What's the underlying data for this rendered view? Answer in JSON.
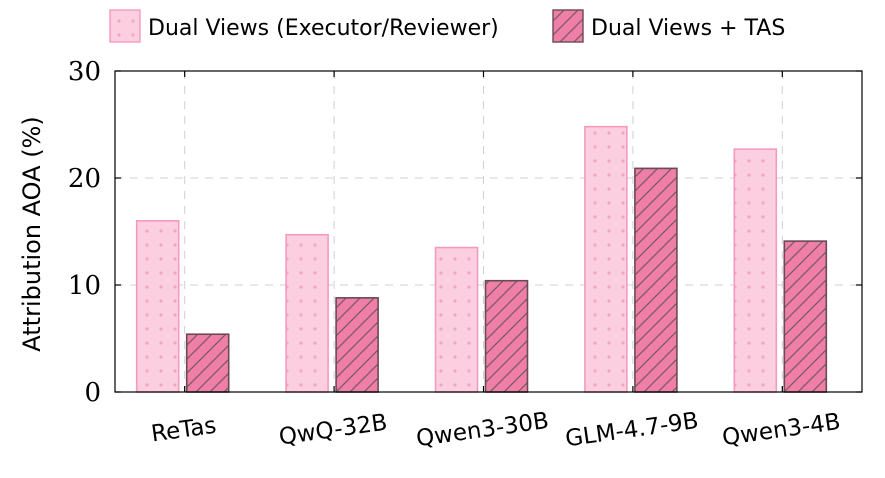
{
  "chart_data": {
    "type": "bar",
    "categories": [
      "ReTas",
      "QwQ-32B",
      "Qwen3-30B",
      "GLM-4.7-9B",
      "Qwen3-4B"
    ],
    "series": [
      {
        "name": "Dual Views (Executor/Reviewer)",
        "values": [
          16.0,
          14.7,
          13.5,
          24.8,
          22.7
        ],
        "color": "#fbcfe0",
        "stroke": "#f49bbd",
        "pattern": "dots"
      },
      {
        "name": "Dual Views + TAS",
        "values": [
          5.4,
          8.8,
          10.4,
          20.9,
          14.1
        ],
        "color": "#ef7fa6",
        "stroke": "#6b4a55",
        "pattern": "hatch"
      }
    ],
    "title": "",
    "xlabel": "",
    "ylabel": "Attribution AOA (%)",
    "ylim": [
      0,
      30
    ],
    "yticks": [
      0,
      10,
      20,
      30
    ],
    "grid": true,
    "legend_position": "top"
  }
}
